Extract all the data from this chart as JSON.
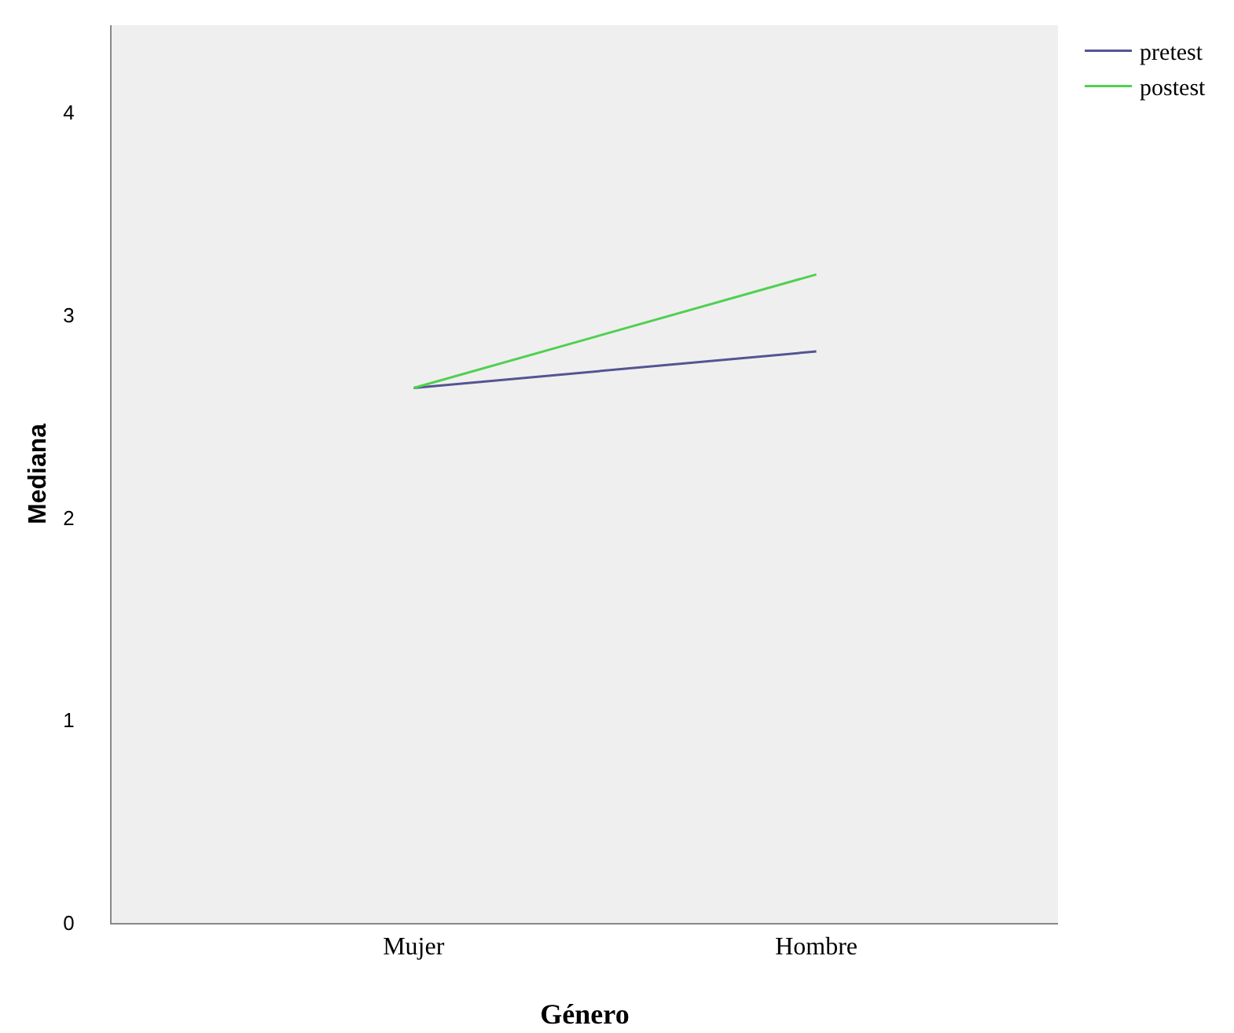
{
  "chart_data": {
    "type": "line",
    "xlabel": "Género",
    "ylabel": "Mediana",
    "categories": [
      "Mujer",
      "Hombre"
    ],
    "series": [
      {
        "name": "pretest",
        "color": "#545493",
        "values": [
          2.64,
          2.82
        ]
      },
      {
        "name": "postest",
        "color": "#50d050",
        "values": [
          2.64,
          3.2
        ]
      }
    ],
    "ylim": [
      0,
      4.43
    ],
    "yticks": [
      0,
      1,
      2,
      3,
      4
    ],
    "grid": false,
    "legend": "top right",
    "marker": "none"
  }
}
